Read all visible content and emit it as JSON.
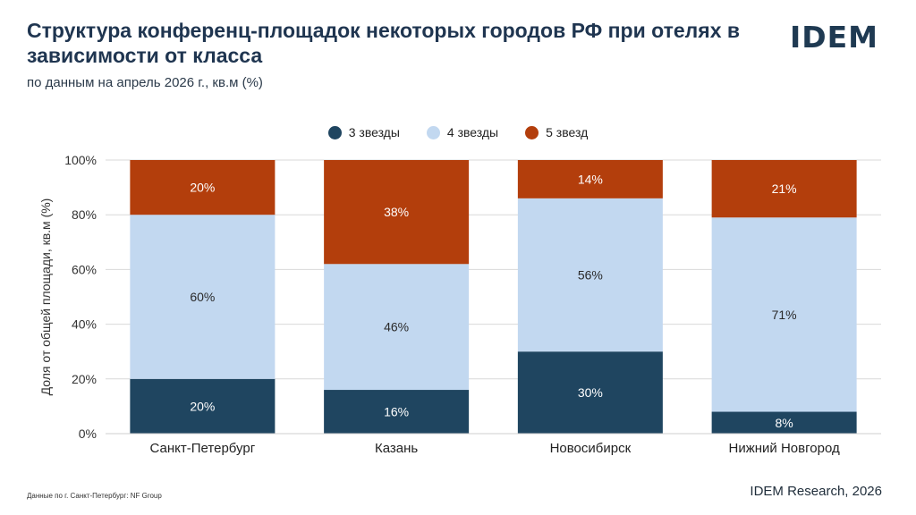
{
  "header": {
    "title": "Структура конференц-площадок некоторых городов РФ при отелях в зависимости от класса",
    "subtitle": "по данным на апрель 2026 г., кв.м (%)",
    "logo": "IDEM"
  },
  "footer": {
    "note": "Данные по г. Санкт-Петербург: NF Group",
    "source": "IDEM Research, 2026"
  },
  "colors": {
    "three_star": "#1f4560",
    "four_star": "#c2d8f0",
    "five_star": "#b33e0c",
    "grid": "#d9d9d9"
  },
  "chart_data": {
    "type": "bar",
    "stacked": true,
    "categories": [
      "Санкт-Петербург",
      "Казань",
      "Новосибирск",
      "Нижний Новгород"
    ],
    "series": [
      {
        "name": "3 звезды",
        "values": [
          20,
          16,
          30,
          8
        ],
        "labels": [
          "20%",
          "16%",
          "30%",
          "8%"
        ]
      },
      {
        "name": "4 звезды",
        "values": [
          60,
          46,
          56,
          71
        ],
        "labels": [
          "60%",
          "46%",
          "56%",
          "71%"
        ]
      },
      {
        "name": "5 звезд",
        "values": [
          20,
          38,
          14,
          21
        ],
        "labels": [
          "20%",
          "38%",
          "14%",
          "21%"
        ]
      }
    ],
    "ylabel": "Доля от общей площади, кв.м (%)",
    "yticks": [
      "0%",
      "20%",
      "40%",
      "60%",
      "80%",
      "100%"
    ],
    "ylim": [
      0,
      100
    ],
    "grid": true,
    "legend": "top-center"
  }
}
